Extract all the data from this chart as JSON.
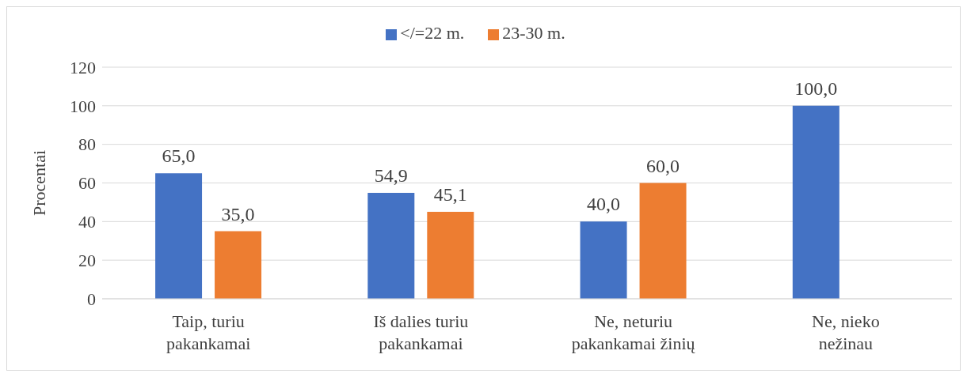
{
  "chart_data": {
    "type": "bar",
    "ylabel": "Procentai",
    "categories": [
      "Taip, turiu pakankamai",
      "Iš dalies turiu pakankamai",
      "Ne, neturiu pakankamai žinių",
      "Ne, nieko nežinau"
    ],
    "series": [
      {
        "name": "</=22 m.",
        "color": "#4472c4",
        "values": [
          65.0,
          54.9,
          40.0,
          100.0
        ],
        "value_labels": [
          "65,0",
          "54,9",
          "40,0",
          "100,0"
        ]
      },
      {
        "name": "23-30 m.",
        "color": "#ed7d31",
        "values": [
          35.0,
          45.1,
          60.0,
          null
        ],
        "value_labels": [
          "35,0",
          "45,1",
          "60,0",
          null
        ]
      }
    ],
    "ylim": [
      0,
      120
    ],
    "yticks": [
      0,
      20,
      40,
      60,
      80,
      100,
      120
    ],
    "grid": "y",
    "legend": "top"
  }
}
